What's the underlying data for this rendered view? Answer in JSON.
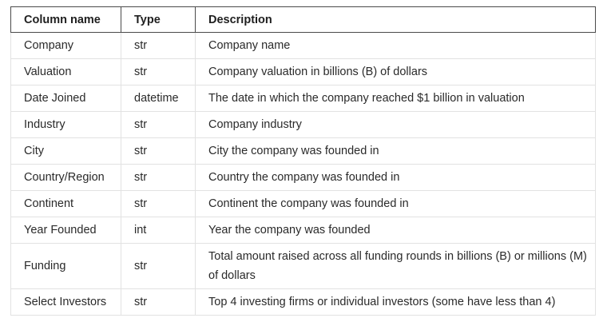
{
  "table": {
    "headers": [
      "Column name",
      "Type",
      "Description"
    ],
    "rows": [
      [
        "Company",
        "str",
        "Company name"
      ],
      [
        "Valuation",
        "str",
        "Company valuation in billions (B) of dollars"
      ],
      [
        "Date Joined",
        "datetime",
        "The date in which the company reached $1 billion in valuation"
      ],
      [
        "Industry",
        "str",
        "Company industry"
      ],
      [
        "City",
        "str",
        "City the company was founded in"
      ],
      [
        "Country/Region",
        "str",
        "Country the company was founded in"
      ],
      [
        "Continent",
        "str",
        "Continent the company was founded in"
      ],
      [
        "Year Founded",
        "int",
        "Year the company was founded"
      ],
      [
        "Funding",
        "str",
        "Total amount raised across all funding rounds in billions (B) or millions (M) of dollars"
      ],
      [
        "Select Investors",
        "str",
        "Top 4 investing firms or individual investors (some have less than 4)"
      ]
    ]
  }
}
